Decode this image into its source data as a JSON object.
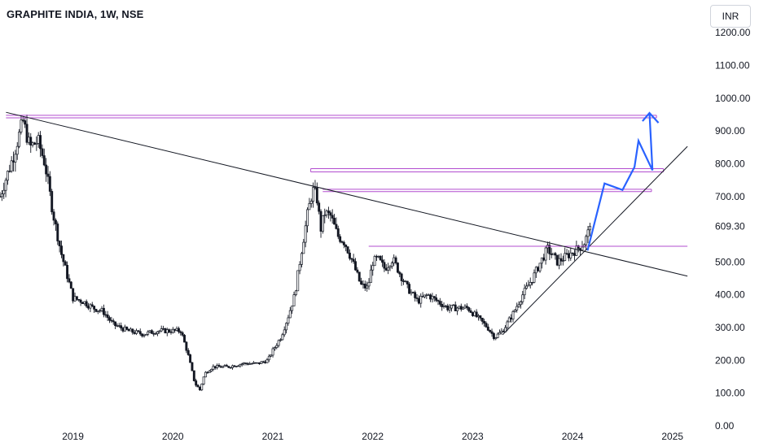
{
  "header": {
    "title": "GRAPHITE INDIA, 1W, NSE",
    "currency": "INR"
  },
  "colors": {
    "candle": "#131722",
    "resistance_lines": "#b24dcf",
    "trend_lines": "#131722",
    "projection_arrow": "#2962ff",
    "axis_text": "#131722"
  },
  "chart_data": {
    "type": "candlestick",
    "y_ticks": [
      0,
      100,
      200,
      300,
      400,
      500,
      609.3,
      700,
      800,
      900,
      1000,
      1100,
      1200
    ],
    "y_tick_labels": [
      "0.00",
      "100.00",
      "200.00",
      "300.00",
      "400.00",
      "500.00",
      "609.30",
      "700.00",
      "800.00",
      "900.00",
      "1000.00",
      "1100.00",
      "1200.00"
    ],
    "ylim": [
      -20,
      1280
    ],
    "x_ticks": [
      2019,
      2020,
      2021,
      2022,
      2023,
      2024,
      2025
    ],
    "x_tick_labels": [
      "2019",
      "2020",
      "2021",
      "2022",
      "2023",
      "2024",
      "2025"
    ],
    "xlim": [
      2018.27,
      2025.32
    ],
    "last_price": 609.3,
    "price_path": [
      [
        2018.27,
        700
      ],
      [
        2018.4,
        820
      ],
      [
        2018.5,
        930
      ],
      [
        2018.57,
        850
      ],
      [
        2018.65,
        870
      ],
      [
        2018.72,
        800
      ],
      [
        2018.8,
        650
      ],
      [
        2018.88,
        530
      ],
      [
        2018.95,
        450
      ],
      [
        2019.0,
        390
      ],
      [
        2019.1,
        380
      ],
      [
        2019.2,
        360
      ],
      [
        2019.3,
        350
      ],
      [
        2019.4,
        310
      ],
      [
        2019.55,
        290
      ],
      [
        2019.7,
        280
      ],
      [
        2019.85,
        290
      ],
      [
        2020.0,
        290
      ],
      [
        2020.08,
        290
      ],
      [
        2020.15,
        220
      ],
      [
        2020.22,
        130
      ],
      [
        2020.27,
        110
      ],
      [
        2020.32,
        160
      ],
      [
        2020.4,
        180
      ],
      [
        2020.55,
        180
      ],
      [
        2020.7,
        190
      ],
      [
        2020.85,
        190
      ],
      [
        2020.95,
        200
      ],
      [
        2021.0,
        230
      ],
      [
        2021.08,
        270
      ],
      [
        2021.15,
        330
      ],
      [
        2021.22,
        400
      ],
      [
        2021.28,
        520
      ],
      [
        2021.35,
        650
      ],
      [
        2021.4,
        720
      ],
      [
        2021.44,
        700
      ],
      [
        2021.48,
        600
      ],
      [
        2021.52,
        650
      ],
      [
        2021.58,
        640
      ],
      [
        2021.65,
        580
      ],
      [
        2021.72,
        560
      ],
      [
        2021.8,
        500
      ],
      [
        2021.88,
        430
      ],
      [
        2021.95,
        420
      ],
      [
        2022.0,
        500
      ],
      [
        2022.05,
        510
      ],
      [
        2022.12,
        480
      ],
      [
        2022.2,
        510
      ],
      [
        2022.28,
        460
      ],
      [
        2022.35,
        420
      ],
      [
        2022.45,
        380
      ],
      [
        2022.55,
        400
      ],
      [
        2022.65,
        380
      ],
      [
        2022.75,
        360
      ],
      [
        2022.85,
        360
      ],
      [
        2022.95,
        360
      ],
      [
        2023.05,
        330
      ],
      [
        2023.15,
        300
      ],
      [
        2023.22,
        270
      ],
      [
        2023.3,
        290
      ],
      [
        2023.4,
        340
      ],
      [
        2023.5,
        400
      ],
      [
        2023.6,
        450
      ],
      [
        2023.68,
        500
      ],
      [
        2023.75,
        540
      ],
      [
        2023.85,
        500
      ],
      [
        2023.95,
        520
      ],
      [
        2024.05,
        540
      ],
      [
        2024.12,
        560
      ],
      [
        2024.18,
        609.3
      ]
    ],
    "resistance_lines": [
      {
        "x1": 2018.33,
        "x2": 2024.84,
        "y": 948
      },
      {
        "x1": 2018.33,
        "x2": 2024.84,
        "y": 940
      },
      {
        "x1": 2021.38,
        "x2": 2024.91,
        "y": 785
      },
      {
        "x1": 2021.38,
        "x2": 2024.91,
        "y": 775
      },
      {
        "x1": 2021.5,
        "x2": 2024.79,
        "y": 722
      },
      {
        "x1": 2021.5,
        "x2": 2024.79,
        "y": 715
      },
      {
        "x1": 2021.96,
        "x2": 2025.15,
        "y": 548
      }
    ],
    "trend_lines": [
      {
        "x1": 2018.33,
        "y1": 957,
        "x2": 2025.15,
        "y2": 457
      },
      {
        "x1": 2023.3,
        "y1": 278,
        "x2": 2025.15,
        "y2": 853
      }
    ],
    "projection_path": [
      [
        2024.15,
        535
      ],
      [
        2024.32,
        740
      ],
      [
        2024.5,
        720
      ],
      [
        2024.62,
        790
      ],
      [
        2024.66,
        870
      ],
      [
        2024.8,
        780
      ],
      [
        2024.77,
        955
      ]
    ],
    "arrow_head": [
      [
        2024.7,
        930
      ],
      [
        2024.77,
        955
      ],
      [
        2024.86,
        925
      ]
    ]
  }
}
